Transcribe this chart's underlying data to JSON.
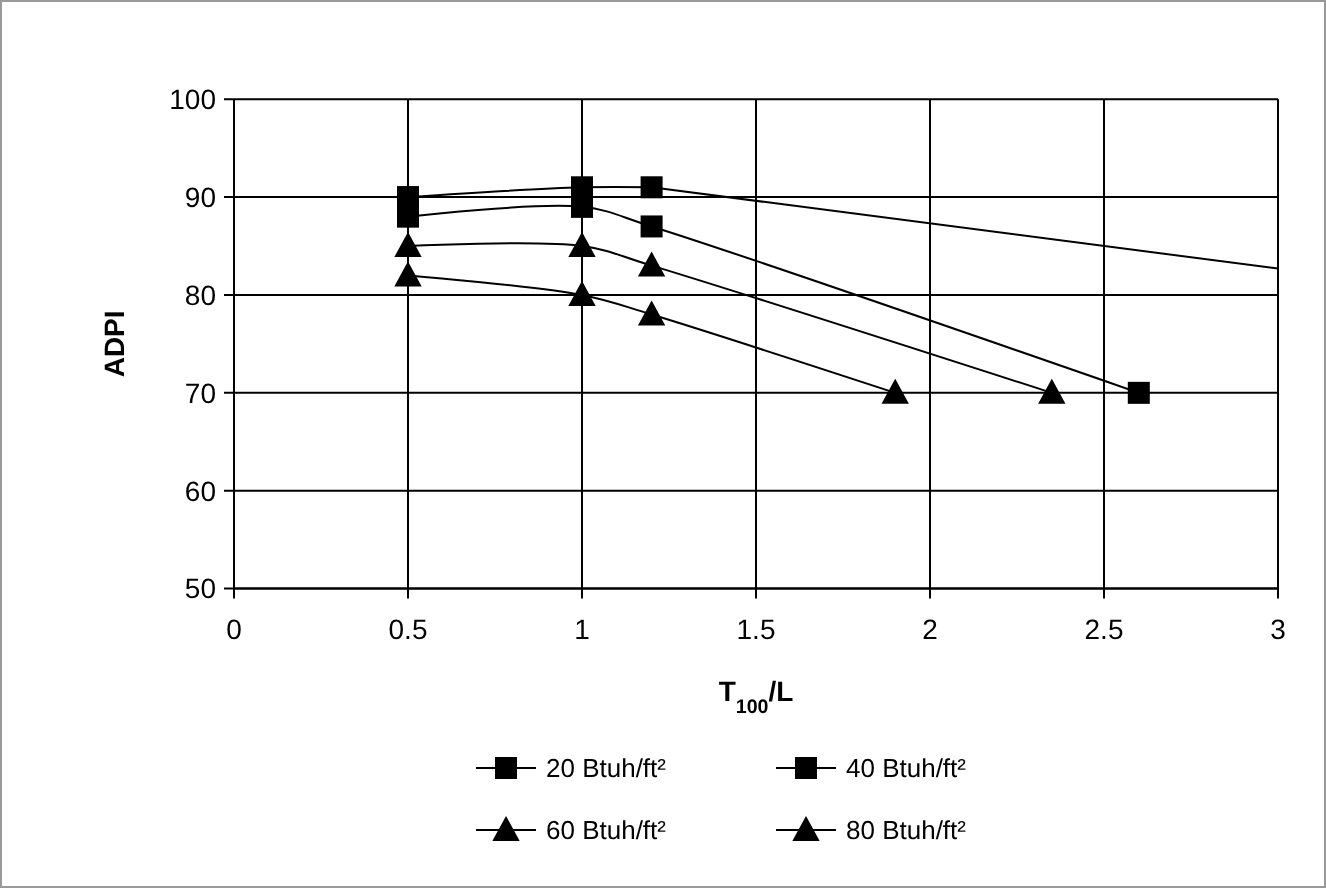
{
  "chart_data": {
    "type": "line",
    "xlabel": "T$_{100}$/L",
    "ylabel": "ADPI",
    "xlim": [
      0,
      3
    ],
    "xticks": [
      0,
      0.5,
      1,
      1.5,
      2,
      2.5,
      3
    ],
    "ylim": [
      50,
      100
    ],
    "yticks": [
      50,
      60,
      70,
      80,
      90,
      100
    ],
    "grid": true,
    "legend": "bottom",
    "series": [
      {
        "name": "20 Btuh/ft²",
        "color": "#000000",
        "marker": "square",
        "x": [
          0.5,
          1,
          1.2
        ],
        "values": [
          90,
          91,
          91
        ]
      },
      {
        "name": "40 Btuh/ft²",
        "color": "#000000",
        "marker": "square",
        "x": [
          0.5,
          1,
          1.2,
          2.6
        ],
        "values": [
          88,
          89,
          87,
          70
        ]
      },
      {
        "name": "60 Btuh/ft²",
        "color": "#000000",
        "marker": "triangle",
        "x": [
          0.5,
          1,
          1.2,
          2.35
        ],
        "values": [
          85,
          85,
          83,
          70
        ]
      },
      {
        "name": "80 Btuh/ft²",
        "color": "#000000",
        "marker": "triangle",
        "x": [
          0.5,
          1,
          1.2,
          1.9
        ],
        "values": [
          82,
          80,
          78,
          70
        ]
      },
      {
        "color": "#000000",
        "marker": "none",
        "x": [
          1.2,
          3
        ],
        "values": [
          91,
          82.7
        ]
      }
    ]
  }
}
